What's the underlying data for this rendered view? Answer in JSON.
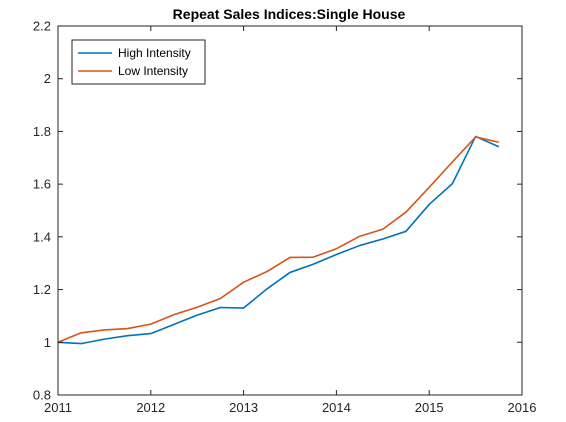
{
  "chart_data": {
    "type": "line",
    "title": "Repeat Sales Indices:Single House",
    "xlabel": "",
    "ylabel": "",
    "xlim": [
      2011,
      2016
    ],
    "ylim": [
      0.8,
      2.2
    ],
    "xticks": [
      2011,
      2012,
      2013,
      2014,
      2015,
      2016
    ],
    "xtick_labels": [
      "2011",
      "2012",
      "2013",
      "2014",
      "2015",
      "2016"
    ],
    "yticks": [
      0.8,
      1.0,
      1.2,
      1.4,
      1.6,
      1.8,
      2.0,
      2.2
    ],
    "ytick_labels": [
      "0.8",
      "1",
      "1.2",
      "1.4",
      "1.6",
      "1.8",
      "2",
      "2.2"
    ],
    "grid": false,
    "legend_position": "top-left",
    "x": [
      2011.0,
      2011.25,
      2011.5,
      2011.75,
      2012.0,
      2012.25,
      2012.5,
      2012.75,
      2013.0,
      2013.25,
      2013.5,
      2013.75,
      2014.0,
      2014.25,
      2014.5,
      2014.75,
      2015.0,
      2015.25,
      2015.5,
      2015.75
    ],
    "series": [
      {
        "name": "High Intensity",
        "color": "#0072bd",
        "values": [
          1.0,
          0.995,
          1.012,
          1.025,
          1.033,
          1.068,
          1.103,
          1.132,
          1.13,
          1.202,
          1.265,
          1.296,
          1.333,
          1.367,
          1.392,
          1.421,
          1.523,
          1.602,
          1.781,
          1.742
        ]
      },
      {
        "name": "Low Intensity",
        "color": "#d95319",
        "values": [
          1.0,
          1.036,
          1.047,
          1.052,
          1.069,
          1.105,
          1.133,
          1.166,
          1.228,
          1.268,
          1.322,
          1.323,
          1.355,
          1.402,
          1.429,
          1.494,
          1.588,
          1.684,
          1.779,
          1.759
        ]
      }
    ]
  }
}
